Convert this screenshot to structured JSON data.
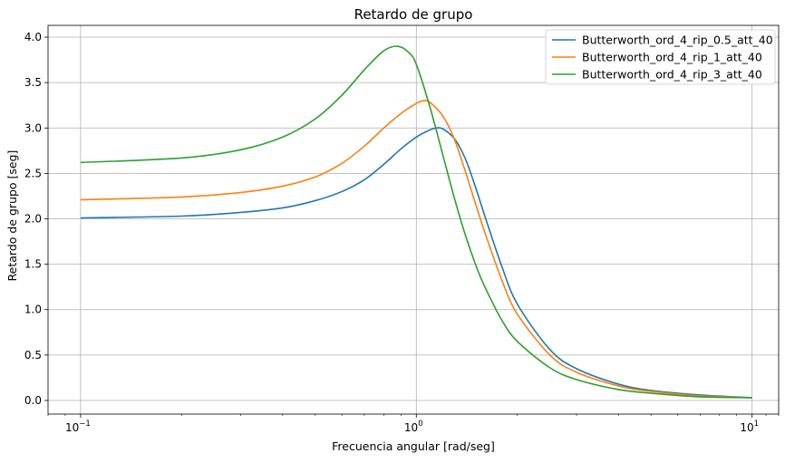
{
  "chart_data": {
    "type": "line",
    "title": "Retardo de grupo",
    "xlabel": "Frecuencia angular [rad/seg]",
    "ylabel": "Retardo de grupo [seg]",
    "x_scale": "log",
    "xlim": [
      0.08,
      12
    ],
    "ylim": [
      -0.15,
      4.13
    ],
    "grid": true,
    "legend_position": "top-right",
    "x_major_ticks": [
      {
        "value": 0.1,
        "base": "10",
        "exp": "−1"
      },
      {
        "value": 1,
        "base": "10",
        "exp": "0"
      },
      {
        "value": 10,
        "base": "10",
        "exp": "1"
      }
    ],
    "y_ticks": [
      {
        "value": 0,
        "label": "0.0"
      },
      {
        "value": 0.5,
        "label": "0.5"
      },
      {
        "value": 1,
        "label": "1.0"
      },
      {
        "value": 1.5,
        "label": "1.5"
      },
      {
        "value": 2,
        "label": "2.0"
      },
      {
        "value": 2.5,
        "label": "2.5"
      },
      {
        "value": 3,
        "label": "3.0"
      },
      {
        "value": 3.5,
        "label": "3.5"
      },
      {
        "value": 4,
        "label": "4.0"
      }
    ],
    "series": [
      {
        "name": "Butterworth_ord_4_rip_0.5_att_40",
        "color": "#1f77b4",
        "points": [
          [
            0.1,
            2.01
          ],
          [
            0.2,
            2.03
          ],
          [
            0.3,
            2.07
          ],
          [
            0.4,
            2.12
          ],
          [
            0.5,
            2.2
          ],
          [
            0.6,
            2.3
          ],
          [
            0.7,
            2.43
          ],
          [
            0.8,
            2.6
          ],
          [
            0.9,
            2.77
          ],
          [
            1.0,
            2.9
          ],
          [
            1.1,
            2.98
          ],
          [
            1.15,
            3.0
          ],
          [
            1.2,
            2.99
          ],
          [
            1.3,
            2.88
          ],
          [
            1.4,
            2.66
          ],
          [
            1.5,
            2.35
          ],
          [
            1.6,
            2.03
          ],
          [
            1.8,
            1.47
          ],
          [
            2.0,
            1.06
          ],
          [
            2.5,
            0.56
          ],
          [
            3.0,
            0.35
          ],
          [
            4.0,
            0.18
          ],
          [
            5.0,
            0.11
          ],
          [
            7.0,
            0.06
          ],
          [
            10.0,
            0.03
          ]
        ]
      },
      {
        "name": "Butterworth_ord_4_rip_1_att_40",
        "color": "#ff7f0e",
        "points": [
          [
            0.1,
            2.21
          ],
          [
            0.2,
            2.24
          ],
          [
            0.3,
            2.29
          ],
          [
            0.4,
            2.36
          ],
          [
            0.5,
            2.46
          ],
          [
            0.6,
            2.61
          ],
          [
            0.7,
            2.8
          ],
          [
            0.8,
            3.0
          ],
          [
            0.9,
            3.16
          ],
          [
            1.0,
            3.27
          ],
          [
            1.05,
            3.3
          ],
          [
            1.1,
            3.28
          ],
          [
            1.2,
            3.13
          ],
          [
            1.3,
            2.87
          ],
          [
            1.4,
            2.52
          ],
          [
            1.5,
            2.17
          ],
          [
            1.6,
            1.85
          ],
          [
            1.8,
            1.32
          ],
          [
            2.0,
            0.95
          ],
          [
            2.5,
            0.5
          ],
          [
            3.0,
            0.31
          ],
          [
            4.0,
            0.16
          ],
          [
            5.0,
            0.1
          ],
          [
            7.0,
            0.05
          ],
          [
            10.0,
            0.03
          ]
        ]
      },
      {
        "name": "Butterworth_ord_4_rip_3_att_40",
        "color": "#2ca02c",
        "points": [
          [
            0.1,
            2.62
          ],
          [
            0.2,
            2.67
          ],
          [
            0.3,
            2.76
          ],
          [
            0.4,
            2.9
          ],
          [
            0.5,
            3.1
          ],
          [
            0.6,
            3.36
          ],
          [
            0.7,
            3.64
          ],
          [
            0.8,
            3.85
          ],
          [
            0.88,
            3.9
          ],
          [
            0.95,
            3.83
          ],
          [
            1.0,
            3.7
          ],
          [
            1.1,
            3.22
          ],
          [
            1.2,
            2.7
          ],
          [
            1.3,
            2.22
          ],
          [
            1.4,
            1.82
          ],
          [
            1.5,
            1.5
          ],
          [
            1.6,
            1.25
          ],
          [
            1.8,
            0.88
          ],
          [
            2.0,
            0.65
          ],
          [
            2.5,
            0.36
          ],
          [
            3.0,
            0.23
          ],
          [
            4.0,
            0.12
          ],
          [
            5.0,
            0.08
          ],
          [
            7.0,
            0.04
          ],
          [
            10.0,
            0.03
          ]
        ]
      }
    ]
  }
}
